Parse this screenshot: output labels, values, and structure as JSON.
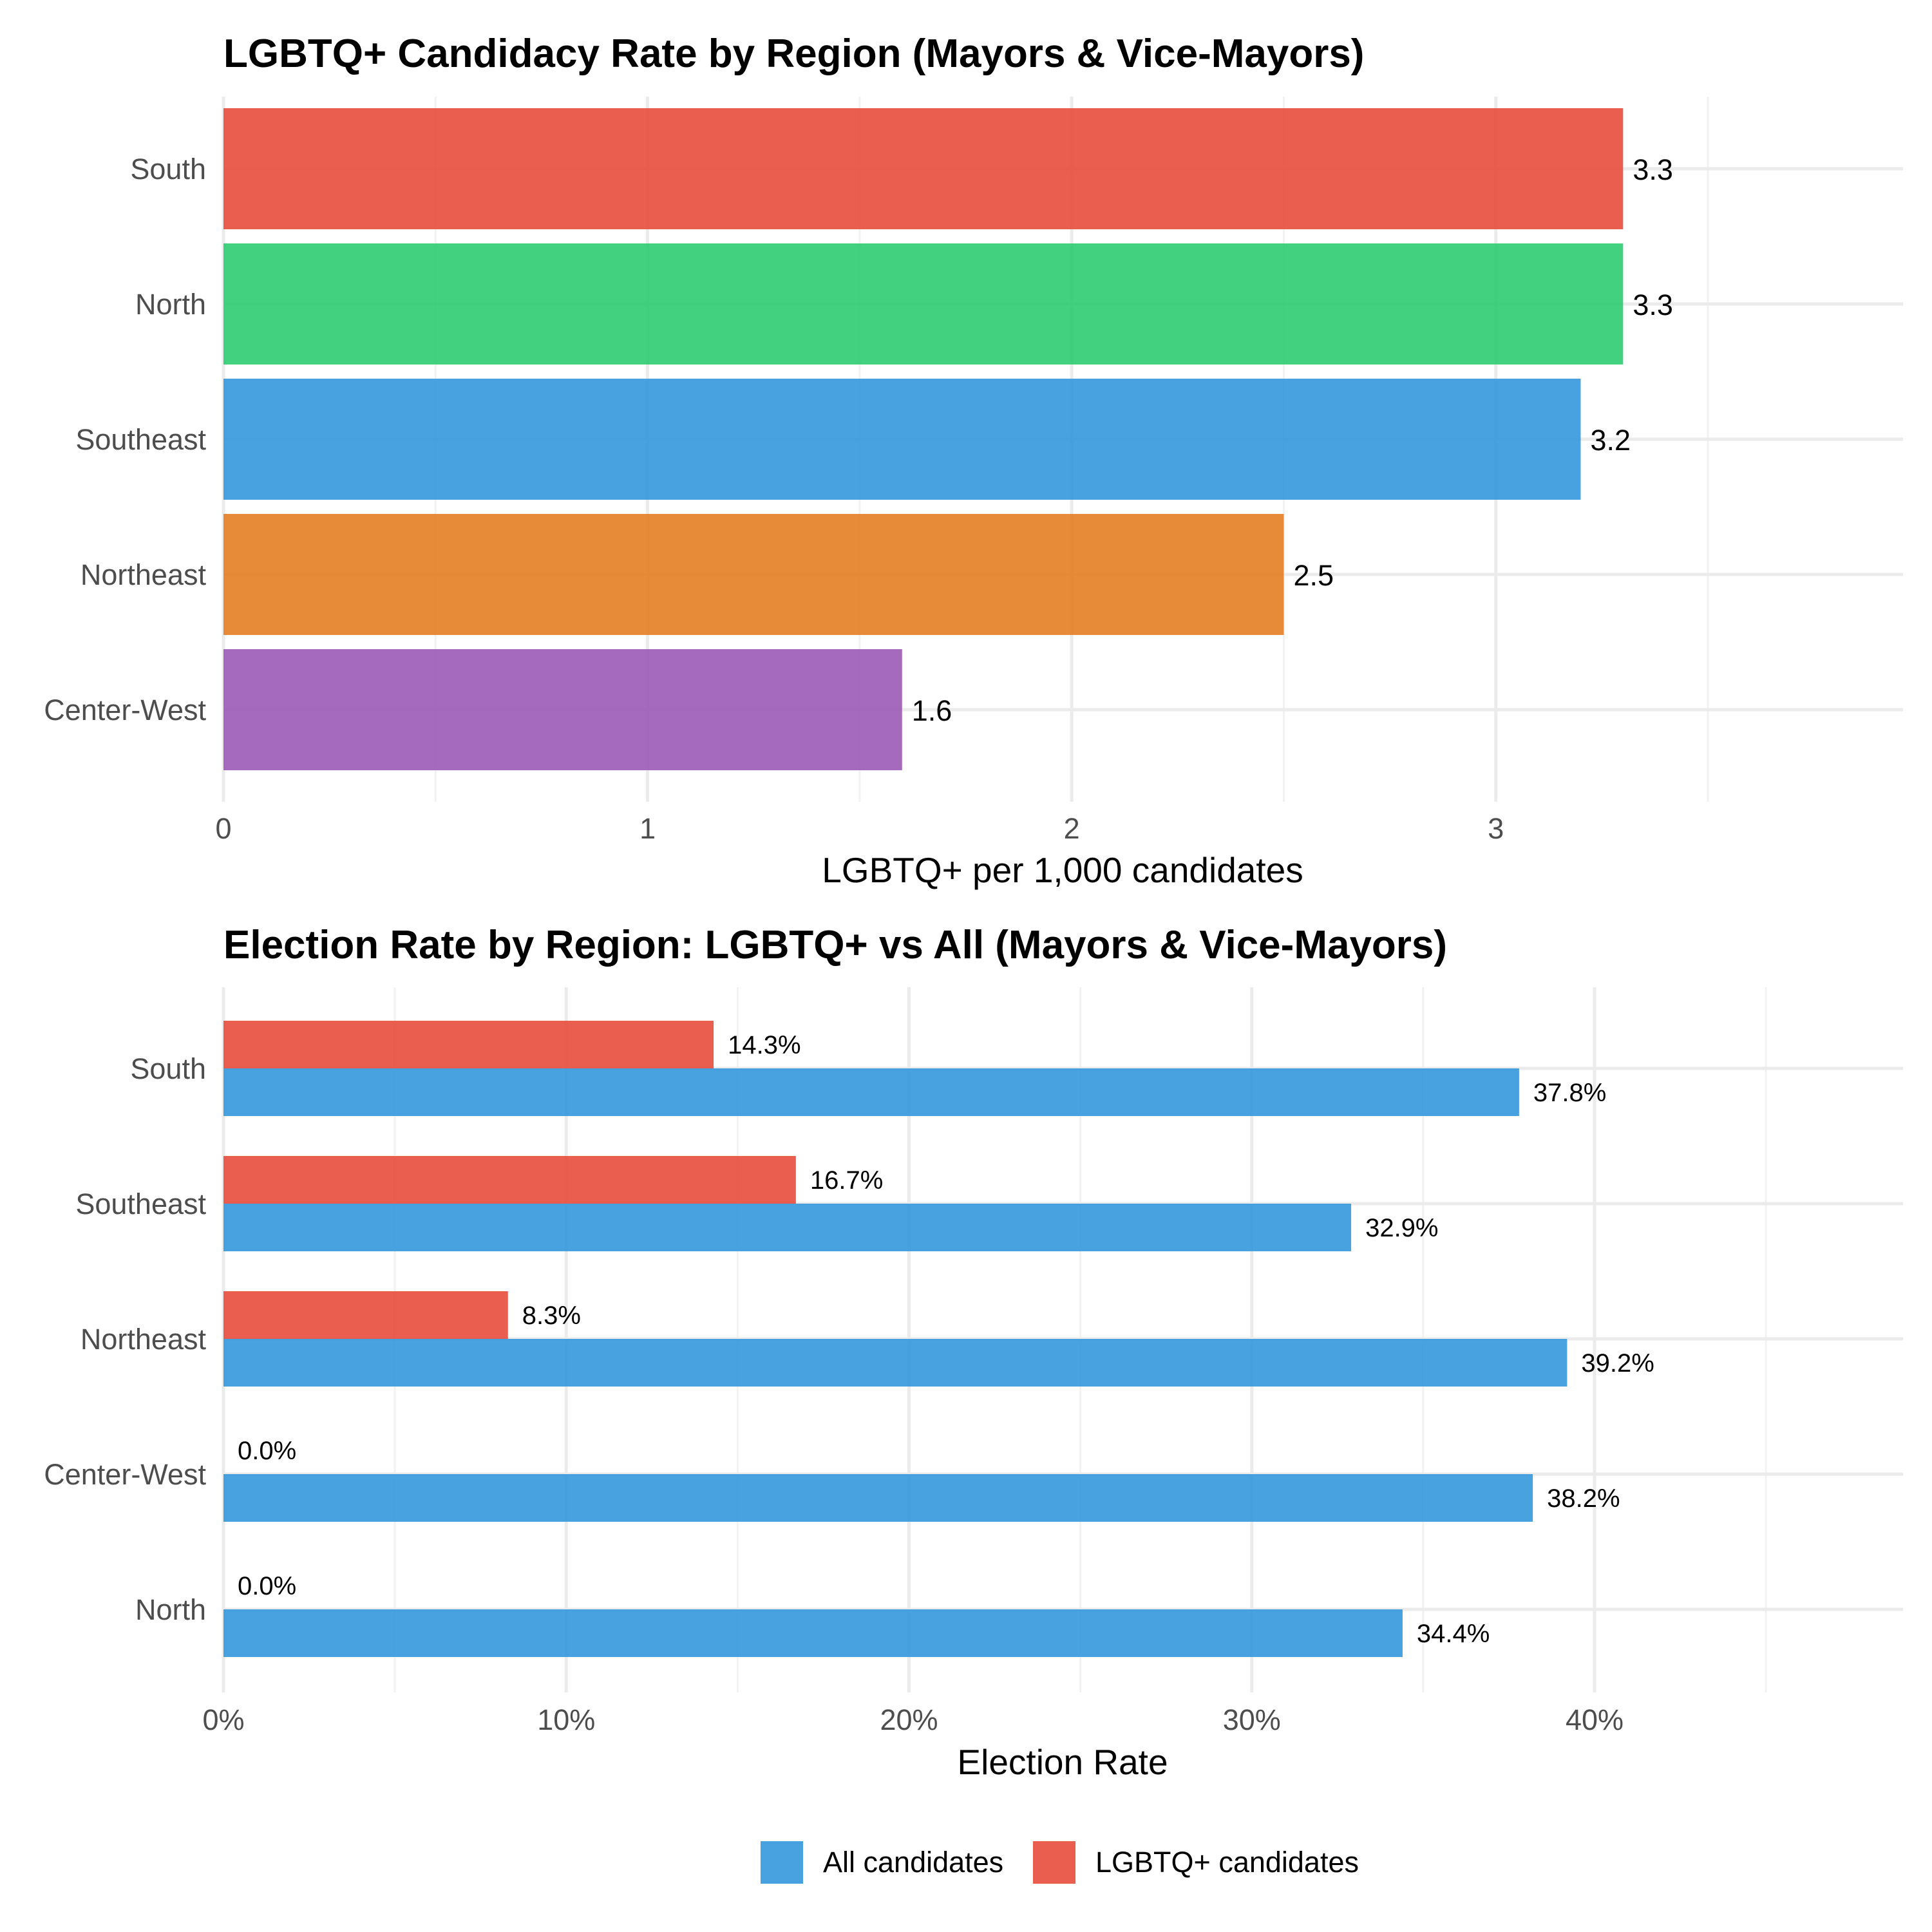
{
  "chart_data": [
    {
      "type": "bar",
      "orientation": "horizontal",
      "title": "LGBTQ+ Candidacy Rate by Region (Mayors & Vice-Mayors)",
      "xlabel": "LGBTQ+ per 1,000 candidates",
      "ylabel": "",
      "xlim": [
        0,
        3.96
      ],
      "x_ticks": [
        0,
        1,
        2,
        3
      ],
      "x_tick_labels": [
        "0",
        "1",
        "2",
        "3"
      ],
      "categories": [
        "South",
        "North",
        "Southeast",
        "Northeast",
        "Center-West"
      ],
      "values": [
        3.3,
        3.3,
        3.2,
        2.5,
        1.6
      ],
      "value_labels": [
        "3.3",
        "3.3",
        "3.2",
        "2.5",
        "1.6"
      ],
      "colors": [
        "#e74c3c",
        "#2ecc71",
        "#3498db",
        "#e67e22",
        "#9b59b6"
      ],
      "grid": true,
      "legend": "none"
    },
    {
      "type": "bar",
      "orientation": "horizontal",
      "grouped": true,
      "title": "Election Rate by Region: LGBTQ+ vs All (Mayors & Vice-Mayors)",
      "xlabel": "Election Rate",
      "ylabel": "",
      "xlim": [
        0,
        49
      ],
      "x_ticks": [
        0,
        10,
        20,
        30,
        40
      ],
      "x_tick_labels": [
        "0%",
        "10%",
        "20%",
        "30%",
        "40%"
      ],
      "categories": [
        "South",
        "Southeast",
        "Northeast",
        "Center-West",
        "North"
      ],
      "series": [
        {
          "name": "LGBTQ+ candidates",
          "color": "#e74c3c",
          "values": [
            14.3,
            16.7,
            8.3,
            0.0,
            0.0
          ],
          "labels": [
            "14.3%",
            "16.7%",
            "8.3%",
            "0.0%",
            "0.0%"
          ]
        },
        {
          "name": "All candidates",
          "color": "#3498db",
          "values": [
            37.8,
            32.9,
            39.2,
            38.2,
            34.4
          ],
          "labels": [
            "37.8%",
            "32.9%",
            "39.2%",
            "38.2%",
            "34.4%"
          ]
        }
      ],
      "grid": true,
      "legend": "bottom-center",
      "legend_items": [
        "All candidates",
        "LGBTQ+ candidates"
      ]
    }
  ]
}
